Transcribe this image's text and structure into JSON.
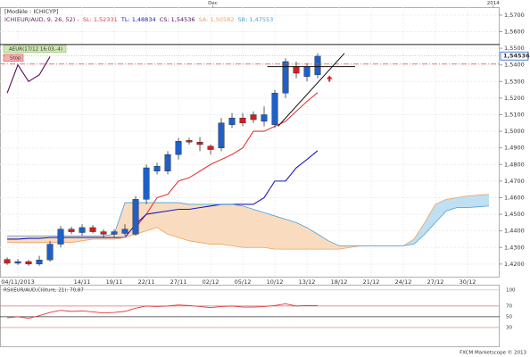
{
  "chart_data": {
    "type": "candlestick",
    "title": "[Modèle : ICHICYP]",
    "indicator": "ICH(EUR/AUD, 9, 26, 52) -",
    "x": [
      0,
      1,
      2,
      3,
      4,
      5,
      6,
      7,
      8,
      9,
      10,
      11,
      12,
      13,
      14,
      15,
      16,
      17,
      18,
      19,
      20,
      21,
      22,
      23,
      24,
      25,
      26,
      27,
      28,
      29
    ],
    "open": [
      1.4228,
      1.4205,
      1.4215,
      1.42,
      1.4225,
      1.432,
      1.441,
      1.439,
      1.442,
      1.4395,
      1.438,
      1.4385,
      1.438,
      1.459,
      1.476,
      1.476,
      1.486,
      1.4945,
      1.4935,
      1.491,
      1.49,
      1.504,
      1.508,
      1.51,
      1.506,
      1.504,
      1.523,
      1.539,
      1.533,
      1.534
    ],
    "high": [
      1.424,
      1.423,
      1.4225,
      1.425,
      1.434,
      1.443,
      1.4425,
      1.444,
      1.4435,
      1.441,
      1.441,
      1.444,
      1.461,
      1.48,
      1.481,
      1.488,
      1.496,
      1.496,
      1.4965,
      1.492,
      1.508,
      1.511,
      1.511,
      1.512,
      1.515,
      1.525,
      1.544,
      1.542,
      1.541,
      1.547
    ],
    "low": [
      1.4195,
      1.4195,
      1.419,
      1.419,
      1.4215,
      1.43,
      1.438,
      1.437,
      1.4385,
      1.436,
      1.436,
      1.437,
      1.437,
      1.456,
      1.474,
      1.474,
      1.483,
      1.492,
      1.488,
      1.486,
      1.488,
      1.502,
      1.503,
      1.505,
      1.503,
      1.502,
      1.52,
      1.532,
      1.53,
      1.532
    ],
    "close": [
      1.4205,
      1.4215,
      1.42,
      1.4225,
      1.432,
      1.441,
      1.4395,
      1.442,
      1.4395,
      1.438,
      1.4395,
      1.441,
      1.459,
      1.478,
      1.479,
      1.486,
      1.494,
      1.4935,
      1.492,
      1.489,
      1.505,
      1.508,
      1.505,
      1.507,
      1.51,
      1.523,
      1.542,
      1.535,
      1.539,
      1.54536
    ],
    "up_color": "#1f5fc8",
    "down_color": "#d02020",
    "series": [
      {
        "legend": "SL: 1,52331",
        "color": "#e03a3a",
        "x": [
          12,
          13,
          14,
          15,
          16,
          17,
          18,
          19,
          20,
          21,
          22,
          23,
          24,
          25,
          26,
          27,
          28,
          29
        ],
        "values": [
          1.442,
          1.45,
          1.46,
          1.462,
          1.47,
          1.472,
          1.476,
          1.48,
          1.483,
          1.486,
          1.49,
          1.5,
          1.5,
          1.503,
          1.506,
          1.512,
          1.518,
          1.5233
        ]
      },
      {
        "legend": "TL: 1,48834",
        "color": "#1a1ac0",
        "x": [
          0,
          1,
          2,
          3,
          4,
          5,
          6,
          7,
          8,
          9,
          10,
          11,
          12,
          13,
          14,
          15,
          16,
          17,
          18,
          19,
          20,
          21,
          22,
          23,
          24,
          25,
          26,
          27,
          28,
          29
        ],
        "values": [
          1.435,
          1.435,
          1.4355,
          1.4355,
          1.436,
          1.436,
          1.436,
          1.436,
          1.436,
          1.436,
          1.436,
          1.436,
          1.444,
          1.45,
          1.451,
          1.452,
          1.453,
          1.453,
          1.454,
          1.455,
          1.456,
          1.456,
          1.456,
          1.456,
          1.46,
          1.47,
          1.47,
          1.478,
          1.483,
          1.4883
        ]
      },
      {
        "legend": "CS: 1,54536",
        "color": "#5a0a5a",
        "x": [
          0,
          1,
          2,
          3,
          4
        ],
        "values": [
          1.523,
          1.54,
          1.53,
          1.534,
          1.545
        ]
      },
      {
        "legend": "SA: 1,50582",
        "color": "#f0a060",
        "x": [
          0,
          1,
          2,
          3,
          4,
          5,
          6,
          7,
          8,
          9,
          10,
          11,
          12,
          13,
          14,
          15,
          16,
          17,
          18,
          19,
          20,
          21,
          22,
          23,
          24,
          25,
          26,
          27,
          28,
          29,
          30,
          31,
          32,
          33,
          34,
          35,
          36,
          37,
          38,
          39,
          40,
          41,
          42,
          43,
          44,
          45
        ],
        "values": [
          1.433,
          1.433,
          1.433,
          1.433,
          1.433,
          1.433,
          1.433,
          1.434,
          1.435,
          1.435,
          1.435,
          1.436,
          1.438,
          1.44,
          1.442,
          1.438,
          1.436,
          1.434,
          1.433,
          1.432,
          1.432,
          1.431,
          1.43,
          1.43,
          1.43,
          1.429,
          1.429,
          1.429,
          1.429,
          1.429,
          1.429,
          1.429,
          1.43,
          1.431,
          1.431,
          1.431,
          1.431,
          1.431,
          1.435,
          1.445,
          1.456,
          1.459,
          1.46,
          1.461,
          1.4615,
          1.462
        ]
      },
      {
        "legend": "SB: 1,47553",
        "color": "#4aa0d8",
        "x": [
          0,
          1,
          2,
          3,
          4,
          5,
          6,
          7,
          8,
          9,
          10,
          11,
          12,
          13,
          14,
          15,
          16,
          17,
          18,
          19,
          20,
          21,
          22,
          23,
          24,
          25,
          26,
          27,
          28,
          29,
          30,
          31,
          32,
          33,
          34,
          35,
          36,
          37,
          38,
          39,
          40,
          41,
          42,
          43,
          44,
          45
        ],
        "values": [
          1.437,
          1.437,
          1.437,
          1.437,
          1.437,
          1.437,
          1.437,
          1.437,
          1.437,
          1.437,
          1.438,
          1.457,
          1.457,
          1.457,
          1.457,
          1.457,
          1.457,
          1.456,
          1.456,
          1.456,
          1.456,
          1.456,
          1.455,
          1.453,
          1.451,
          1.449,
          1.447,
          1.445,
          1.442,
          1.438,
          1.434,
          1.431,
          1.431,
          1.431,
          1.431,
          1.431,
          1.431,
          1.431,
          1.432,
          1.438,
          1.445,
          1.452,
          1.454,
          1.454,
          1.4545,
          1.455
        ]
      }
    ],
    "cloud_colors": {
      "bull": "#bfe0f2",
      "bear": "#f9dcc0"
    },
    "xlim": [
      -0.67,
      46
    ],
    "xticks": [
      {
        "value": 1,
        "label": "04/11/2013"
      },
      {
        "value": 7,
        "label": "14/11"
      },
      {
        "value": 10,
        "label": "19/11"
      },
      {
        "value": 13,
        "label": "22/11"
      },
      {
        "value": 16,
        "label": "27/11"
      },
      {
        "value": 19,
        "label": "02/12"
      },
      {
        "value": 22,
        "label": "05/12"
      },
      {
        "value": 25,
        "label": "10/12"
      },
      {
        "value": 28,
        "label": "13/12"
      },
      {
        "value": 31,
        "label": "18/12"
      },
      {
        "value": 34,
        "label": "21/12"
      },
      {
        "value": 37,
        "label": "24/12"
      },
      {
        "value": 40,
        "label": "27/12"
      },
      {
        "value": 43,
        "label": "30/12"
      }
    ],
    "top_ticks": [
      {
        "value": 19.2,
        "label": "Dec"
      },
      {
        "value": 45.4,
        "label": "2014"
      }
    ],
    "ylim": [
      1.4124,
      1.5748
    ],
    "yticks": [
      {
        "value": 1.57,
        "label": "1,5700"
      },
      {
        "value": 1.56,
        "label": "1,5600"
      },
      {
        "value": 1.55,
        "label": "1,5500"
      },
      {
        "value": 1.54,
        "label": "1,5400"
      },
      {
        "value": 1.53,
        "label": "1,5300"
      },
      {
        "value": 1.52,
        "label": "1,5200"
      },
      {
        "value": 1.51,
        "label": "1,5100"
      },
      {
        "value": 1.5,
        "label": "1,5000"
      },
      {
        "value": 1.49,
        "label": "1,4900"
      },
      {
        "value": 1.48,
        "label": "1,4800"
      },
      {
        "value": 1.47,
        "label": "1,4700"
      },
      {
        "value": 1.46,
        "label": "1,4600"
      },
      {
        "value": 1.45,
        "label": "1,4500"
      },
      {
        "value": 1.44,
        "label": "1,4400"
      },
      {
        "value": 1.43,
        "label": "1,4300"
      },
      {
        "value": 1.42,
        "label": "1,4200"
      }
    ],
    "grid": true,
    "alert": {
      "label": "AEUR(17/12 16:03,-4)",
      "value": 1.5523,
      "color": "#222222"
    },
    "stop": {
      "label": "Stop",
      "value": 1.5405,
      "color": "#e05050"
    },
    "last_price": {
      "value": 1.54536,
      "label": "1,54536"
    },
    "trendlines": [
      {
        "points": [
          [
            25.3,
            1.503
          ],
          [
            31.5,
            1.547
          ]
        ]
      },
      {
        "points": [
          [
            24.3,
            1.539
          ],
          [
            32.5,
            1.539
          ]
        ]
      }
    ],
    "marker": {
      "x": 30.1,
      "y": 1.532,
      "color": "#e02020"
    },
    "rsi": {
      "title": "RSI(EUR/AUD,Clôture, 21): 70,87",
      "color": "#e03a3a",
      "x": [
        0,
        1,
        2,
        3,
        4,
        5,
        6,
        7,
        8,
        9,
        10,
        11,
        12,
        13,
        14,
        15,
        16,
        17,
        18,
        19,
        20,
        21,
        22,
        23,
        24,
        25,
        26,
        27,
        28,
        29
      ],
      "values": [
        48,
        50,
        47,
        52,
        58,
        62,
        60,
        61,
        59,
        57,
        58,
        60,
        66,
        70,
        69,
        70,
        72,
        71,
        69,
        67,
        69,
        70,
        68,
        68,
        69,
        71,
        74,
        70,
        71,
        70.87
      ],
      "ylim": [
        -5,
        108
      ],
      "yticks": [
        100,
        70,
        50,
        30
      ],
      "tick_line_colors": [
        "#bbbbbb",
        "#e07070",
        "#333333",
        "#e07070"
      ]
    },
    "footer": "FXCM Marketscope © 2013"
  }
}
